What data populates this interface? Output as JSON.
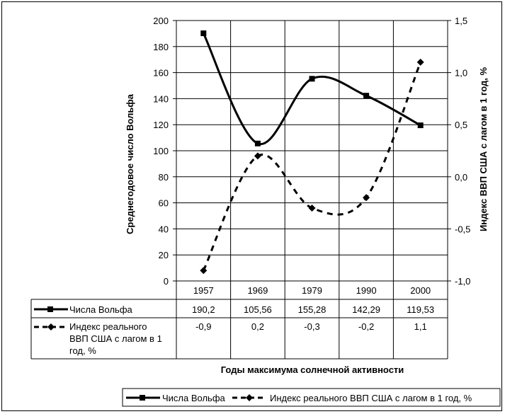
{
  "chart_data": {
    "type": "line",
    "categories": [
      "1957",
      "1969",
      "1979",
      "1990",
      "2000"
    ],
    "xlabel": "Годы максимума солнечной активности",
    "ylabel_left": "Среднегодовое число Вольфа",
    "ylabel_right": "Индекс ВВП США с лагом в 1 год, %",
    "ylim_left": [
      0,
      200
    ],
    "ylim_right": [
      -1.0,
      1.5
    ],
    "yticks_left": [
      "0",
      "20",
      "40",
      "60",
      "80",
      "100",
      "120",
      "140",
      "160",
      "180",
      "200"
    ],
    "yticks_right": [
      "-1,0",
      "-0,5",
      "0,0",
      "0,5",
      "1,0",
      "1,5"
    ],
    "series": [
      {
        "name": "Числа Вольфа",
        "axis": "left",
        "values": [
          190.2,
          105.56,
          155.28,
          142.29,
          119.53
        ],
        "labels": [
          "190,2",
          "105,56",
          "155,28",
          "142,29",
          "119,53"
        ],
        "style": "solid",
        "marker": "square"
      },
      {
        "name": "Индекс реального ВВП США с лагом в 1 год, %",
        "table_name_lines": [
          "Индекс реального",
          "ВВП США с лагом в 1",
          "год, %"
        ],
        "axis": "right",
        "values": [
          -0.9,
          0.2,
          -0.3,
          -0.2,
          1.1
        ],
        "labels": [
          "-0,9",
          "0,2",
          "-0,3",
          "-0,2",
          "1,1"
        ],
        "style": "dashed",
        "marker": "diamond"
      }
    ],
    "grid": true,
    "legend_position": "bottom-right",
    "data_table": true
  }
}
